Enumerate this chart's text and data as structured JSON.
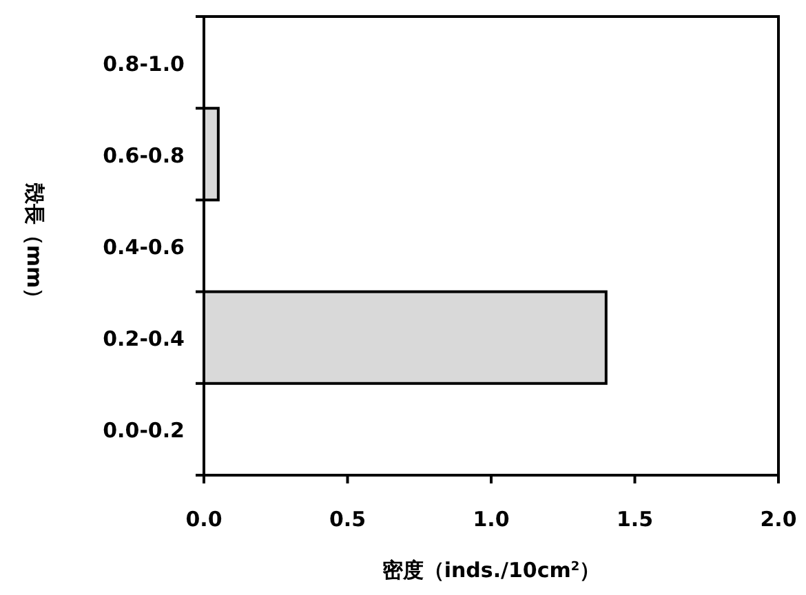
{
  "chart_data": {
    "type": "bar",
    "orientation": "horizontal",
    "xlabel": "密度（inds./10cm$^{2}$）",
    "ylabel": "殻長（mm）",
    "categories": [
      "0.8-1.0",
      "0.6-0.8",
      "0.4-0.6",
      "0.2-0.4",
      "0.0-0.2"
    ],
    "values": [
      0,
      0.05,
      0,
      1.4,
      0
    ],
    "color": "#d9d9d9",
    "xlim": [
      0,
      2
    ],
    "xticks": [
      {
        "value": 0,
        "label": "0.0"
      },
      {
        "value": 0.5,
        "label": "0.5"
      },
      {
        "value": 1,
        "label": "1.0"
      },
      {
        "value": 1.5,
        "label": "1.5"
      },
      {
        "value": 2,
        "label": "2.0"
      }
    ]
  }
}
